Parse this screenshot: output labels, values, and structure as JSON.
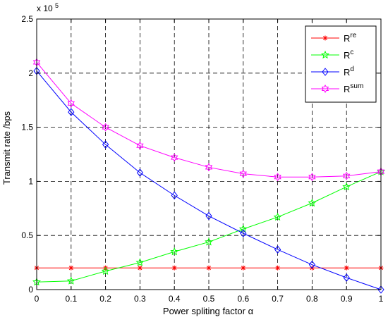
{
  "chart_data": {
    "type": "line",
    "xlabel": "Power spliting factor α",
    "ylabel": "Transmit rate /bps",
    "exponent_label": "x 10",
    "exponent_power": "5",
    "xlim": [
      0,
      1
    ],
    "ylim": [
      0,
      250000
    ],
    "x_ticks": [
      "0",
      "0.1",
      "0.2",
      "0.3",
      "0.4",
      "0.5",
      "0.6",
      "0.7",
      "0.8",
      "0.9",
      "1"
    ],
    "y_ticks": [
      "0",
      "0.5",
      "1",
      "1.5",
      "2",
      "2.5"
    ],
    "grid": true,
    "legend_position": "top-right",
    "x": [
      0,
      0.1,
      0.2,
      0.3,
      0.4,
      0.5,
      0.6,
      0.7,
      0.8,
      0.9,
      1.0
    ],
    "series": [
      {
        "name": "R",
        "superscript": "re",
        "color": "#ff0000",
        "marker": "asterisk",
        "values": [
          20000,
          20000,
          20000,
          20000,
          20000,
          20000,
          20000,
          20000,
          20000,
          20000,
          20000
        ]
      },
      {
        "name": "R",
        "superscript": "c",
        "color": "#00ff00",
        "marker": "pentagram",
        "values": [
          7000,
          8000,
          17000,
          25000,
          35000,
          44000,
          56000,
          67000,
          80000,
          95000,
          109000
        ]
      },
      {
        "name": "R",
        "superscript": "d",
        "color": "#0000ff",
        "marker": "diamond",
        "values": [
          202000,
          164000,
          134000,
          108000,
          87000,
          68000,
          52000,
          37000,
          23000,
          11000,
          0
        ]
      },
      {
        "name": "R",
        "superscript": "sum",
        "color": "#ff00ff",
        "marker": "hexagram",
        "values": [
          210000,
          172000,
          150000,
          133000,
          122000,
          113000,
          107000,
          104000,
          104000,
          105000,
          109000
        ]
      }
    ]
  }
}
